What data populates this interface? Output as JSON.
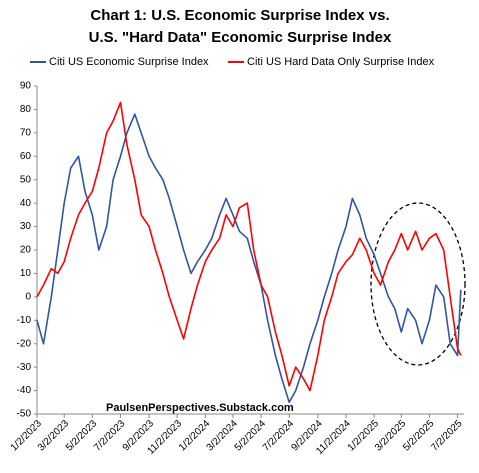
{
  "chart_data": {
    "type": "line",
    "title": [
      "Chart 1: U.S. Economic Surprise Index vs.",
      "U.S. \"Hard Data\" Economic Surprise Index"
    ],
    "annotation": "PaulsenPerspectives.Substack.com",
    "x": [
      "1/2/2023",
      "1/16/2023",
      "2/2/2023",
      "2/16/2023",
      "3/2/2023",
      "3/16/2023",
      "4/2/2023",
      "4/16/2023",
      "5/2/2023",
      "5/16/2023",
      "6/2/2023",
      "6/16/2023",
      "7/2/2023",
      "7/16/2023",
      "8/2/2023",
      "8/16/2023",
      "9/2/2023",
      "9/16/2023",
      "10/2/2023",
      "10/16/2023",
      "11/2/2023",
      "11/16/2023",
      "12/2/2023",
      "12/16/2023",
      "1/2/2024",
      "1/16/2024",
      "2/2/2024",
      "2/16/2024",
      "3/2/2024",
      "3/16/2024",
      "4/2/2024",
      "4/16/2024",
      "5/2/2024",
      "5/16/2024",
      "6/2/2024",
      "6/16/2024",
      "7/2/2024",
      "7/16/2024",
      "8/2/2024",
      "8/16/2024",
      "9/2/2024",
      "9/16/2024",
      "10/2/2024",
      "10/16/2024",
      "11/2/2024",
      "11/16/2024",
      "12/2/2024",
      "12/16/2024",
      "1/2/2025",
      "1/16/2025",
      "2/2/2025",
      "2/16/2025",
      "3/2/2025",
      "3/16/2025",
      "4/2/2025",
      "4/16/2025",
      "5/2/2025",
      "5/16/2025",
      "6/2/2025",
      "6/16/2025",
      "7/2/2025",
      "7/9/2025"
    ],
    "series": [
      {
        "name": "Citi US Economic Surprise Index",
        "color": "#2f55a4",
        "values": [
          -10,
          -20,
          0,
          20,
          40,
          55,
          60,
          45,
          35,
          20,
          30,
          50,
          60,
          70,
          78,
          70,
          60,
          55,
          50,
          42,
          30,
          20,
          10,
          15,
          20,
          25,
          35,
          42,
          35,
          28,
          25,
          15,
          5,
          -10,
          -25,
          -35,
          -45,
          -40,
          -30,
          -20,
          -10,
          0,
          10,
          20,
          30,
          42,
          35,
          25,
          18,
          10,
          0,
          -5,
          -15,
          -5,
          -10,
          -20,
          -10,
          5,
          0,
          -20,
          -25,
          3
        ]
      },
      {
        "name": "Citi US Hard Data Only Surprise Index",
        "color": "#ff0000",
        "values": [
          0,
          5,
          12,
          10,
          15,
          25,
          35,
          40,
          45,
          55,
          70,
          75,
          83,
          65,
          50,
          35,
          30,
          20,
          10,
          0,
          -10,
          -18,
          -5,
          5,
          15,
          20,
          25,
          35,
          30,
          38,
          40,
          20,
          5,
          0,
          -15,
          -25,
          -38,
          -30,
          -35,
          -40,
          -25,
          -10,
          0,
          10,
          15,
          18,
          25,
          20,
          10,
          5,
          15,
          20,
          27,
          20,
          28,
          20,
          25,
          27,
          20,
          0,
          -22,
          -25
        ]
      }
    ],
    "xlim": [
      "1/2/2023",
      "7/16/2025"
    ],
    "xticks": [
      "1/2/2023",
      "3/2/2023",
      "5/2/2023",
      "7/2/2023",
      "9/2/2023",
      "11/2/2023",
      "1/2/2024",
      "3/2/2024",
      "5/2/2024",
      "7/2/2024",
      "9/2/2024",
      "11/2/2024",
      "1/2/2025",
      "3/2/2025",
      "5/2/2025",
      "7/2/2025"
    ],
    "ylim": [
      -50,
      90
    ],
    "yticks": [
      -50,
      -40,
      -30,
      -20,
      -10,
      0,
      10,
      20,
      30,
      40,
      50,
      60,
      70,
      80,
      90
    ],
    "grid": false
  }
}
